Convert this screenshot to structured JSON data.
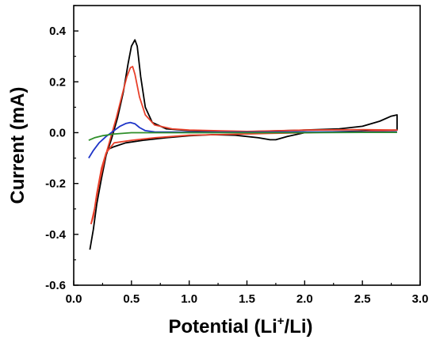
{
  "chart_data": {
    "type": "line",
    "xlabel_parts": [
      "Potential (Li",
      "+",
      "/Li)"
    ],
    "ylabel": "Current (mA)",
    "xlim": [
      0.0,
      3.0
    ],
    "ylim": [
      -0.6,
      0.5
    ],
    "x_ticks": [
      0.0,
      0.5,
      1.0,
      1.5,
      2.0,
      2.5,
      3.0
    ],
    "x_tick_labels": [
      "0.0",
      "0.5",
      "1.0",
      "1.5",
      "2.0",
      "2.5",
      "3.0"
    ],
    "y_ticks": [
      -0.6,
      -0.4,
      -0.2,
      0.0,
      0.2,
      0.4
    ],
    "y_tick_labels": [
      "-0.6",
      "-0.4",
      "-0.2",
      "0.0",
      "0.2",
      "0.4"
    ],
    "grid": false,
    "series": [
      {
        "color": "#000000",
        "points": [
          [
            0.14,
            -0.46
          ],
          [
            0.17,
            -0.38
          ],
          [
            0.2,
            -0.28
          ],
          [
            0.24,
            -0.18
          ],
          [
            0.28,
            -0.09
          ],
          [
            0.33,
            -0.02
          ],
          [
            0.38,
            0.06
          ],
          [
            0.43,
            0.16
          ],
          [
            0.47,
            0.27
          ],
          [
            0.5,
            0.34
          ],
          [
            0.53,
            0.365
          ],
          [
            0.55,
            0.34
          ],
          [
            0.58,
            0.22
          ],
          [
            0.62,
            0.1
          ],
          [
            0.68,
            0.04
          ],
          [
            0.8,
            0.015
          ],
          [
            1.0,
            0.008
          ],
          [
            1.5,
            0.004
          ],
          [
            2.0,
            0.01
          ],
          [
            2.3,
            0.015
          ],
          [
            2.5,
            0.025
          ],
          [
            2.65,
            0.045
          ],
          [
            2.75,
            0.065
          ],
          [
            2.8,
            0.07
          ],
          [
            2.8,
            0.01
          ],
          [
            2.5,
            0.006
          ],
          [
            2.2,
            0.003
          ],
          [
            2.0,
            0.0
          ],
          [
            1.85,
            -0.015
          ],
          [
            1.75,
            -0.028
          ],
          [
            1.7,
            -0.028
          ],
          [
            1.6,
            -0.02
          ],
          [
            1.4,
            -0.01
          ],
          [
            1.2,
            -0.008
          ],
          [
            1.0,
            -0.012
          ],
          [
            0.8,
            -0.02
          ],
          [
            0.6,
            -0.03
          ],
          [
            0.45,
            -0.04
          ],
          [
            0.35,
            -0.055
          ],
          [
            0.3,
            -0.065
          ]
        ]
      },
      {
        "color": "#e8402a",
        "points": [
          [
            0.15,
            -0.36
          ],
          [
            0.18,
            -0.3
          ],
          [
            0.22,
            -0.2
          ],
          [
            0.27,
            -0.1
          ],
          [
            0.32,
            -0.02
          ],
          [
            0.37,
            0.06
          ],
          [
            0.42,
            0.15
          ],
          [
            0.46,
            0.22
          ],
          [
            0.49,
            0.255
          ],
          [
            0.51,
            0.26
          ],
          [
            0.53,
            0.23
          ],
          [
            0.57,
            0.14
          ],
          [
            0.62,
            0.07
          ],
          [
            0.7,
            0.03
          ],
          [
            0.85,
            0.015
          ],
          [
            1.0,
            0.01
          ],
          [
            1.5,
            0.005
          ],
          [
            2.0,
            0.01
          ],
          [
            2.5,
            0.012
          ],
          [
            2.8,
            0.01
          ],
          [
            2.5,
            0.004
          ],
          [
            2.0,
            0.0
          ],
          [
            1.7,
            -0.003
          ],
          [
            1.5,
            -0.005
          ],
          [
            1.0,
            -0.01
          ],
          [
            0.7,
            -0.02
          ],
          [
            0.5,
            -0.03
          ],
          [
            0.35,
            -0.04
          ],
          [
            0.28,
            -0.08
          ],
          [
            0.24,
            -0.14
          ],
          [
            0.2,
            -0.24
          ],
          [
            0.17,
            -0.33
          ],
          [
            0.15,
            -0.36
          ]
        ]
      },
      {
        "color": "#1f35c8",
        "points": [
          [
            0.13,
            -0.1
          ],
          [
            0.17,
            -0.07
          ],
          [
            0.22,
            -0.04
          ],
          [
            0.28,
            -0.015
          ],
          [
            0.34,
            0.005
          ],
          [
            0.4,
            0.025
          ],
          [
            0.45,
            0.036
          ],
          [
            0.49,
            0.04
          ],
          [
            0.53,
            0.035
          ],
          [
            0.57,
            0.02
          ],
          [
            0.62,
            0.008
          ],
          [
            0.7,
            0.003
          ],
          [
            1.0,
            0.002
          ],
          [
            1.5,
            0.002
          ],
          [
            2.0,
            0.003
          ],
          [
            2.5,
            0.003
          ],
          [
            2.8,
            0.003
          ]
        ]
      },
      {
        "color": "#2f8f2a",
        "points": [
          [
            0.13,
            -0.03
          ],
          [
            0.18,
            -0.02
          ],
          [
            0.25,
            -0.012
          ],
          [
            0.35,
            -0.005
          ],
          [
            0.5,
            0.0
          ],
          [
            0.7,
            0.0
          ],
          [
            1.0,
            0.0
          ],
          [
            1.5,
            0.0
          ],
          [
            2.0,
            0.0
          ],
          [
            2.5,
            0.001
          ],
          [
            2.8,
            0.001
          ]
        ]
      }
    ]
  }
}
